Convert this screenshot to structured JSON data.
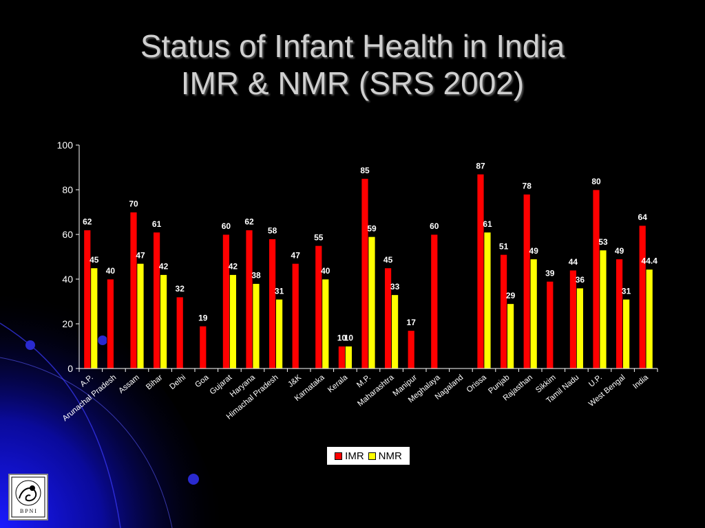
{
  "title": {
    "line1": "Status of Infant Health in India",
    "line2": "IMR & NMR (SRS 2002)"
  },
  "logo": {
    "text": "B P N I"
  },
  "colors": {
    "imr": "#ff0000",
    "nmr": "#ffff00",
    "axis": "#ffffff"
  },
  "chart_data": {
    "type": "bar",
    "title": "",
    "xlabel": "",
    "ylabel": "",
    "ylim": [
      0,
      100
    ],
    "yticks": [
      0,
      20,
      40,
      60,
      80,
      100
    ],
    "legend": "bottom",
    "grid": false,
    "categories": [
      "A.P.",
      "Arunachal Pradesh",
      "Assam",
      "Bihar",
      "Delhi",
      "Goa",
      "Gujarat",
      "Haryana",
      "Himachal Pradesh",
      "J&K",
      "Karnataka",
      "Kerala",
      "M.P.",
      "Maharashtra",
      "Manipur",
      "Meghalaya",
      "Nagaland",
      "Orissa",
      "Punjab",
      "Rajasthan",
      "Sikkim",
      "Tamil Nadu",
      "U.P.",
      "West Bengal",
      "India"
    ],
    "series": [
      {
        "name": "IMR",
        "color": "#ff0000",
        "values": [
          62,
          40,
          70,
          61,
          32,
          19,
          60,
          62,
          58,
          47,
          55,
          10,
          85,
          45,
          17,
          60,
          null,
          87,
          51,
          78,
          39,
          44,
          80,
          49,
          64
        ]
      },
      {
        "name": "NMR",
        "color": "#ffff00",
        "values": [
          45,
          null,
          47,
          42,
          null,
          null,
          42,
          38,
          31,
          null,
          40,
          10,
          59,
          33,
          null,
          null,
          null,
          61,
          29,
          49,
          null,
          36,
          53,
          31,
          44.4
        ]
      }
    ]
  }
}
